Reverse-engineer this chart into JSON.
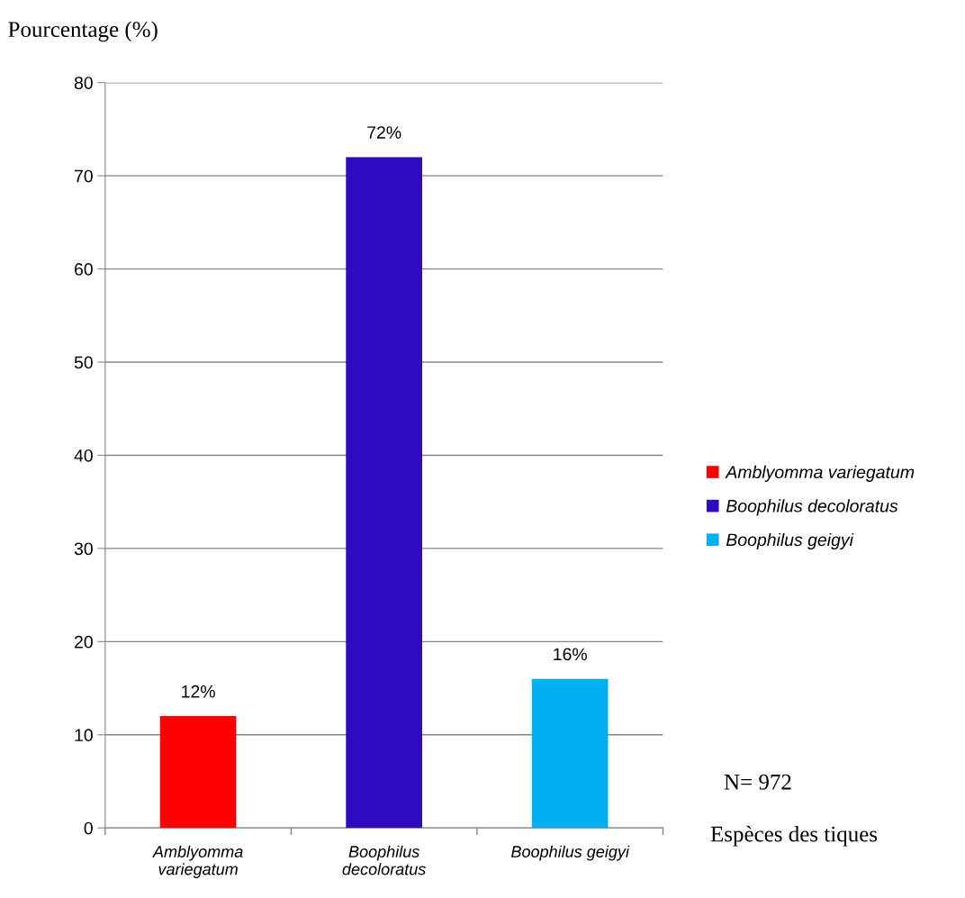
{
  "chart_data": {
    "type": "bar",
    "categories": [
      "Amblyomma variegatum",
      "Boophilus decoloratus",
      "Boophilus geigyi"
    ],
    "series": [
      {
        "name": "Amblyomma variegatum",
        "color": "#ff0000",
        "values": [
          12,
          null,
          null
        ],
        "value_labels": [
          "12%",
          null,
          null
        ]
      },
      {
        "name": "Boophilus decoloratus",
        "color": "#2e0bc1",
        "values": [
          null,
          72,
          null
        ],
        "value_labels": [
          null,
          "72%",
          null
        ]
      },
      {
        "name": "Boophilus geigyi",
        "color": "#00b0f0",
        "values": [
          null,
          null,
          16
        ],
        "value_labels": [
          null,
          null,
          "16%"
        ]
      }
    ],
    "stacked": true,
    "ylabel": "Pourcentage (%)",
    "xlabel": "Espèces des tiques",
    "annotations": [
      "N= 972"
    ],
    "ylim": [
      0,
      80
    ],
    "yticks": [
      0,
      10,
      20,
      30,
      40,
      50,
      60,
      70,
      80
    ],
    "grid": "y",
    "legend": "right"
  }
}
